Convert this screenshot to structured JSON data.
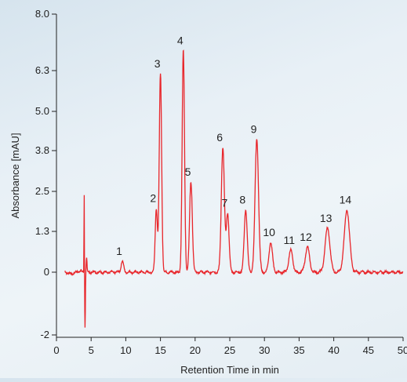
{
  "chart_data": {
    "type": "line",
    "xlabel": "Retention Time in min",
    "ylabel": "Absorbance [mAU]",
    "xlim": [
      0,
      50
    ],
    "x_ticks": [
      0,
      5,
      10,
      15,
      20,
      25,
      30,
      35,
      40,
      45,
      50
    ],
    "y_ticks": [
      {
        "value": -2,
        "label": "-2"
      },
      {
        "value": 0,
        "label": "0"
      },
      {
        "value": 1.3,
        "label": "1.3"
      },
      {
        "value": 2.5,
        "label": "2.5"
      },
      {
        "value": 3.8,
        "label": "3.8"
      },
      {
        "value": 5.0,
        "label": "5.0"
      },
      {
        "value": 6.3,
        "label": "6.3"
      },
      {
        "value": 8.0,
        "label": "8.0"
      }
    ],
    "grid": false,
    "line_color": "#e8262b",
    "baseline_noise": 0.03,
    "system_peak": {
      "x": 4.0,
      "up": 2.5,
      "down": -1.75
    },
    "peaks": [
      {
        "label": "1",
        "x": 9.5,
        "y": 0.35,
        "w": 0.18
      },
      {
        "label": "2",
        "x": 14.4,
        "y": 2.0,
        "w": 0.16
      },
      {
        "label": "3",
        "x": 15.0,
        "y": 6.2,
        "w": 0.17
      },
      {
        "label": "4",
        "x": 18.3,
        "y": 6.9,
        "w": 0.17
      },
      {
        "label": "5",
        "x": 19.4,
        "y": 2.8,
        "w": 0.2
      },
      {
        "label": "6",
        "x": 24.0,
        "y": 3.9,
        "w": 0.22
      },
      {
        "label": "7",
        "x": 24.7,
        "y": 1.85,
        "w": 0.2
      },
      {
        "label": "8",
        "x": 27.3,
        "y": 1.95,
        "w": 0.22
      },
      {
        "label": "9",
        "x": 28.9,
        "y": 4.15,
        "w": 0.25
      },
      {
        "label": "10",
        "x": 30.9,
        "y": 0.95,
        "w": 0.25
      },
      {
        "label": "11",
        "x": 33.8,
        "y": 0.7,
        "w": 0.28
      },
      {
        "label": "12",
        "x": 36.2,
        "y": 0.8,
        "w": 0.3
      },
      {
        "label": "13",
        "x": 39.1,
        "y": 1.4,
        "w": 0.35
      },
      {
        "label": "14",
        "x": 41.9,
        "y": 1.95,
        "w": 0.38
      }
    ]
  }
}
